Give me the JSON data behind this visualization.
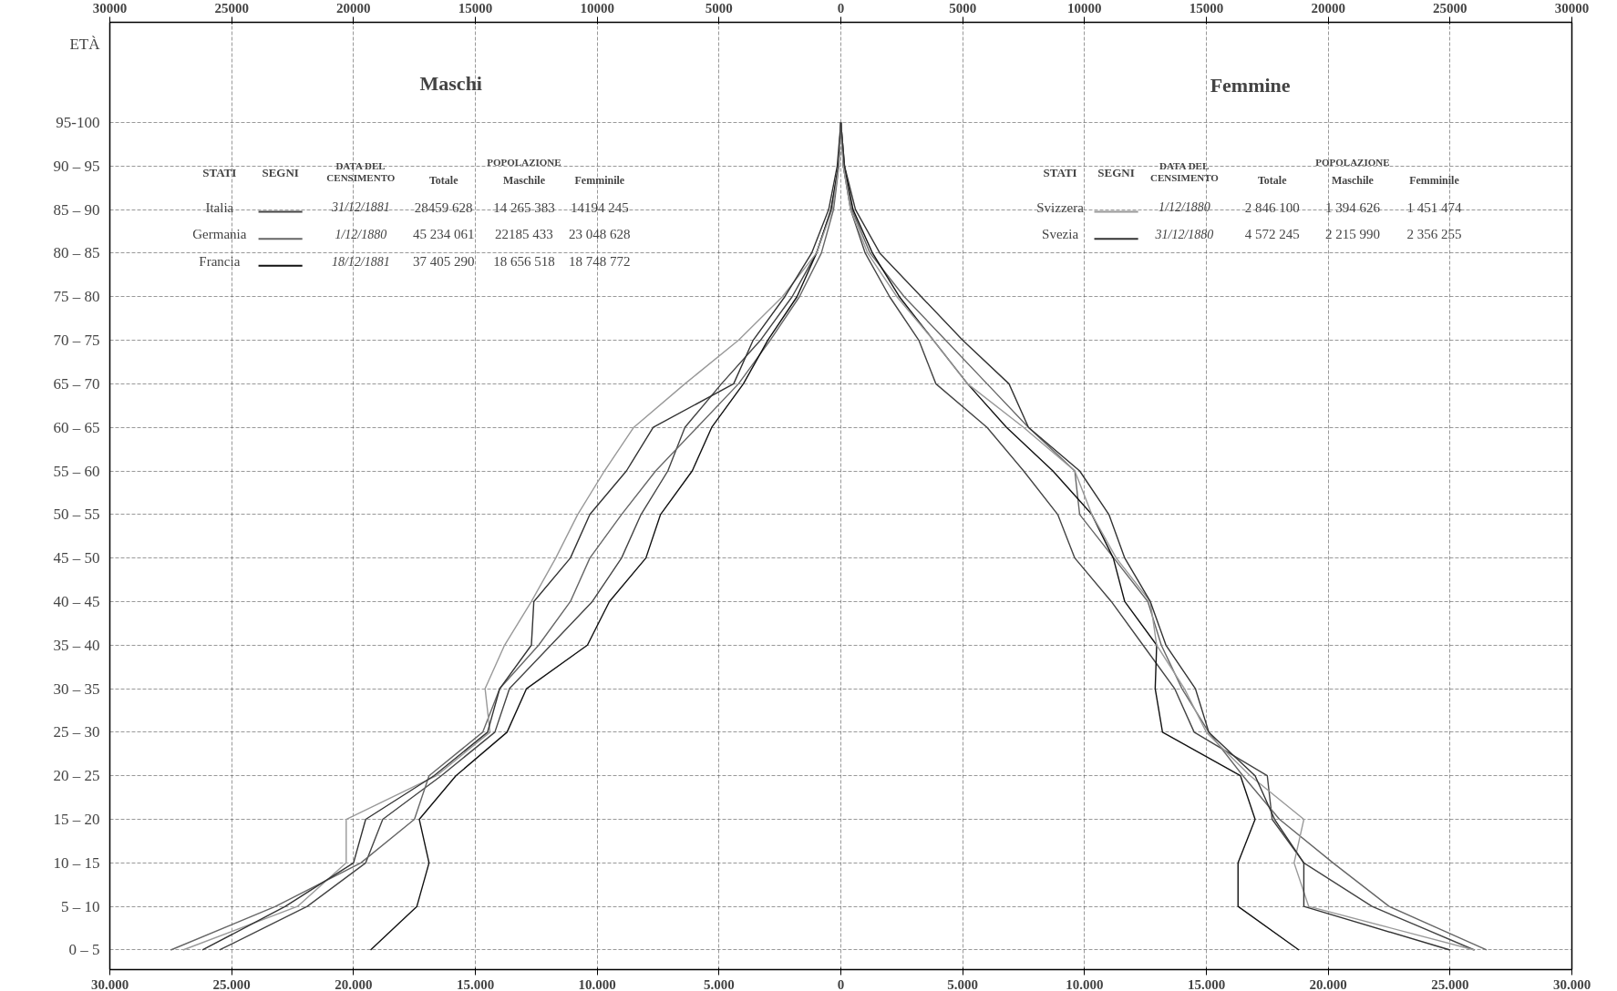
{
  "chart_data": {
    "type": "line",
    "ylabel": "ETÀ",
    "orientation": "horizontal",
    "annotations": [
      "Maschi",
      "Femmine",
      "STATI",
      "SEGNI",
      "DATA DEL CENSIMENTO",
      "POPOLAZIONE",
      "Totale",
      "Maschile",
      "Femminile",
      "31/12/1881",
      "28459 628",
      "14 265 383",
      "14194 245",
      "1/12/1880",
      "45 234 061",
      "22185 433",
      "23 048 628",
      "18/12/1881",
      "37 405 290",
      "18 656 518",
      "18 748 772",
      "STATI",
      "SEGNI",
      "DATA DEL CENSIMENTO",
      "POPOLAZIONE",
      "Totale",
      "Maschile",
      "Femminile",
      "1/12/1880",
      "2 846 100",
      "1 394 626",
      "1 451 474",
      "31/12/1880",
      "4 572 245",
      "2 215 990",
      "2 356 255"
    ],
    "categories": [
      "95-100",
      "90 – 95",
      "85 – 90",
      "80 – 85",
      "75 – 80",
      "70 – 75",
      "65 – 70",
      "60 – 65",
      "55 – 60",
      "50 – 55",
      "45 – 50",
      "40 – 45",
      "35 – 40",
      "30 – 35",
      "25 – 30",
      "20 – 25",
      "15 – 20",
      "10 – 15",
      "5 – 10",
      "0 – 5"
    ],
    "xlim": [
      -30000,
      30000
    ],
    "xticks": [
      {
        "value": -30000,
        "label": "30.000"
      },
      {
        "value": -25000,
        "label": "25.000"
      },
      {
        "value": -20000,
        "label": "20.000"
      },
      {
        "value": -15000,
        "label": "15.000"
      },
      {
        "value": -10000,
        "label": "10.000"
      },
      {
        "value": -5000,
        "label": "5.000"
      },
      0,
      {
        "value": 5000,
        "label": "5.000"
      },
      {
        "value": 10000,
        "label": "10.000"
      },
      {
        "value": 15000,
        "label": "15.000"
      },
      {
        "value": 20000,
        "label": "20.000"
      },
      {
        "value": 25000,
        "label": "25.000"
      },
      {
        "value": 30000,
        "label": "30.000"
      }
    ],
    "x2lim": [
      -30000,
      30000
    ],
    "x2ticks": [
      {
        "value": -30000,
        "label": "30000"
      },
      {
        "value": -25000,
        "label": "25000"
      },
      {
        "value": -20000,
        "label": "20000"
      },
      {
        "value": -15000,
        "label": "15000"
      },
      {
        "value": -10000,
        "label": "10000"
      },
      {
        "value": -5000,
        "label": "5000"
      },
      0,
      5000,
      10000,
      15000,
      20000,
      25000,
      30000
    ],
    "grid": true,
    "legend": "top",
    "line_style": "solid",
    "series": [
      {
        "name": "Italia",
        "color": "#444444",
        "values": [
          0,
          -100,
          -400,
          -1000,
          -2000,
          -3300,
          -4900,
          -6400,
          -7100,
          -8200,
          -9000,
          -10200,
          -11900,
          -13600,
          -14200,
          -16400,
          -18800,
          -19500,
          -21900,
          -25500
        ]
      },
      {
        "name": "Germania",
        "color": "#666666",
        "values": [
          0,
          -80,
          -300,
          -800,
          -1700,
          -2900,
          -4200,
          -5900,
          -7600,
          -9000,
          -10300,
          -11100,
          -12400,
          -14000,
          -14700,
          -16900,
          -17500,
          -19700,
          -23200,
          -27500
        ]
      },
      {
        "name": "Francia",
        "color": "#111111",
        "values": [
          0,
          -100,
          -400,
          -1000,
          -1800,
          -3000,
          -4000,
          -5300,
          -6100,
          -7400,
          -8000,
          -9500,
          -10400,
          -12900,
          -13700,
          -15800,
          -17300,
          -16900,
          -17400,
          -19300
        ]
      },
      {
        "name": "Svizzera",
        "color": "#999999",
        "values": [
          0,
          -80,
          -350,
          -1000,
          -2400,
          -4200,
          -6400,
          -8500,
          -9700,
          -10800,
          -11700,
          -12700,
          -13800,
          -14600,
          -14400,
          -16600,
          -20300,
          -20300,
          -22300,
          -27000
        ]
      },
      {
        "name": "Svezia",
        "color": "#333333",
        "values": [
          0,
          -150,
          -500,
          -1200,
          -2300,
          -3600,
          -4400,
          -7700,
          -8800,
          -10300,
          -11100,
          -12600,
          -12700,
          -14000,
          -14500,
          -16700,
          -19500,
          -20000,
          -22800,
          -26200
        ]
      },
      {
        "color": "#444444",
        "values": [
          0,
          100,
          400,
          1000,
          2000,
          3200,
          3900,
          6000,
          7500,
          8900,
          9600,
          11100,
          12400,
          13700,
          14500,
          17500,
          17700,
          19000,
          21800,
          26000
        ]
      },
      {
        "color": "#666666",
        "values": [
          0,
          100,
          450,
          1200,
          2600,
          4300,
          6000,
          7700,
          9600,
          9800,
          11200,
          12600,
          13150,
          14000,
          15100,
          16500,
          18000,
          20200,
          22500,
          26500
        ]
      },
      {
        "color": "#111111",
        "values": [
          0,
          150,
          500,
          1300,
          2400,
          3800,
          5200,
          6800,
          8700,
          10300,
          11180,
          11650,
          12960,
          12900,
          13200,
          16400,
          17000,
          16300,
          16300,
          18800
        ]
      },
      {
        "color": "#999999",
        "values": [
          0,
          100,
          400,
          1100,
          2300,
          3800,
          5200,
          7500,
          9600,
          10300,
          11300,
          12700,
          12960,
          14100,
          15000,
          16800,
          19000,
          18600,
          19200,
          26000
        ]
      },
      {
        "color": "#333333",
        "values": [
          0,
          150,
          600,
          1600,
          3300,
          5000,
          6900,
          7700,
          9800,
          11000,
          11650,
          12700,
          13340,
          14550,
          15100,
          17000,
          17800,
          19000,
          19000,
          25000
        ]
      }
    ]
  }
}
